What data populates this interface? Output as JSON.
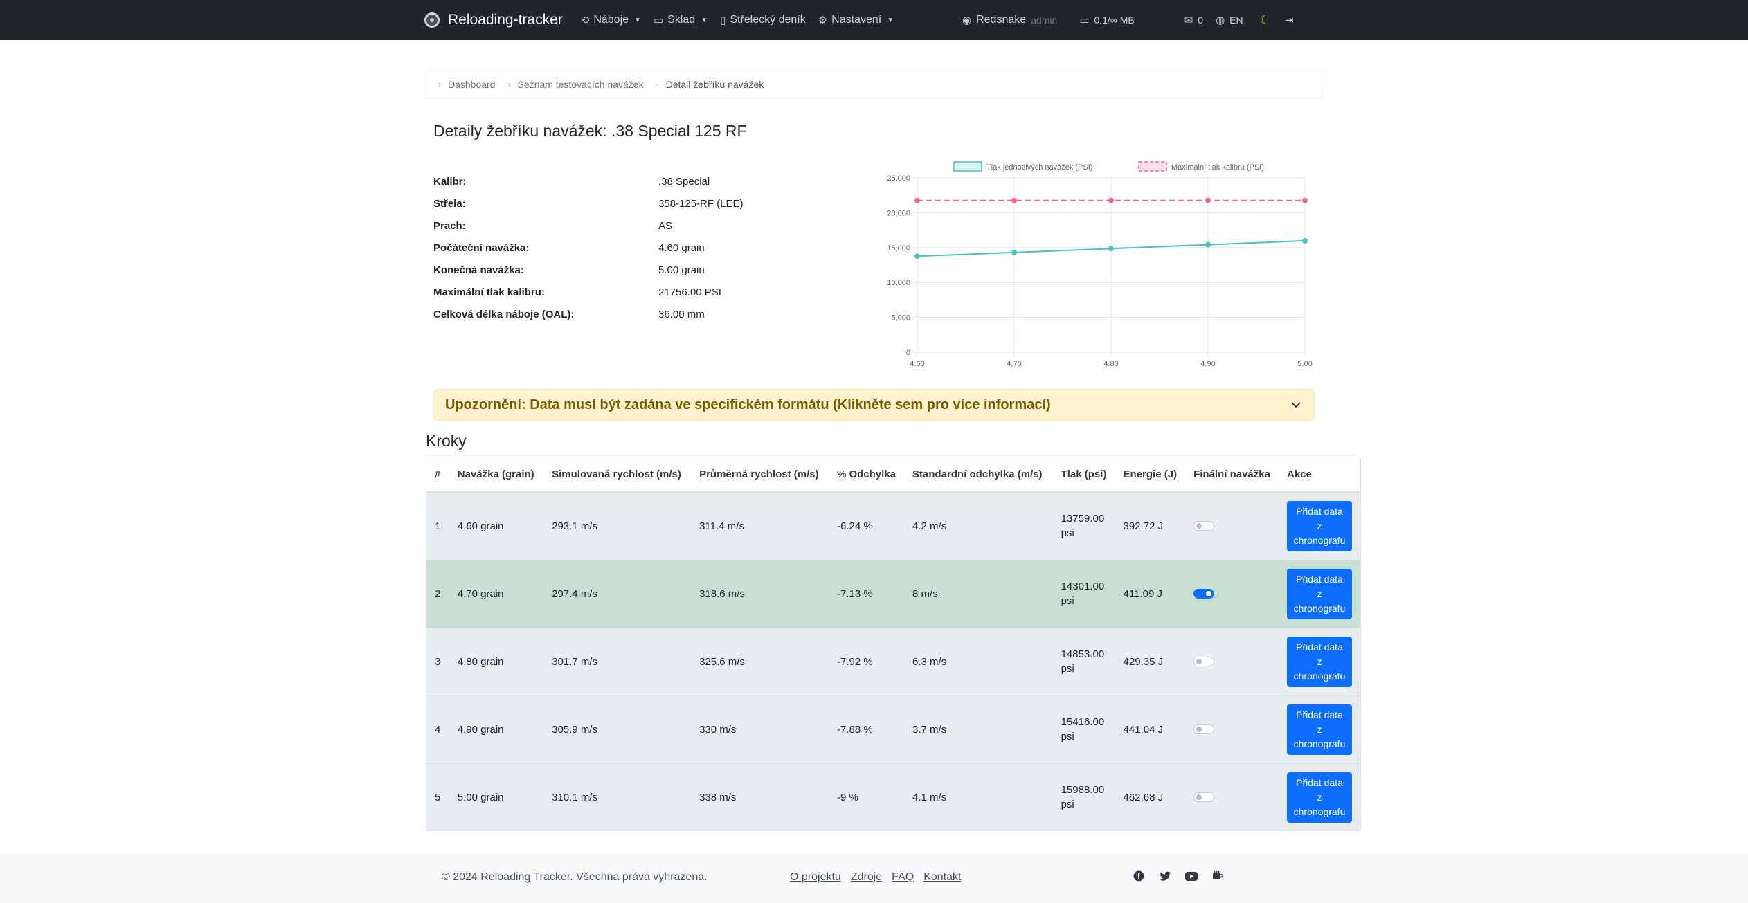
{
  "navbar": {
    "brand": "Reloading-tracker",
    "items": [
      {
        "label": "Náboje",
        "has_caret": true
      },
      {
        "label": "Sklad",
        "has_caret": true
      },
      {
        "label": "Střelecký deník",
        "has_caret": false
      },
      {
        "label": "Nastavení",
        "has_caret": true
      }
    ],
    "user": "Redsnake",
    "role": "admin",
    "storage": "0.1/∞ MB",
    "messages_count": "0",
    "language": "EN"
  },
  "breadcrumb": {
    "items": [
      "Dashboard",
      "Seznam testovacích navážek",
      "Detail žebříku navážek"
    ]
  },
  "page_title": "Detaily žebříku navážek: .38 Special 125 RF",
  "details": [
    {
      "label": "Kalibr:",
      "value": ".38 Special"
    },
    {
      "label": "Střela:",
      "value": "358-125-RF (LEE)"
    },
    {
      "label": "Prach:",
      "value": "AS"
    },
    {
      "label": "Počáteční navážka:",
      "value": "4.60 grain"
    },
    {
      "label": "Konečná navážka:",
      "value": "5.00 grain"
    },
    {
      "label": "Maximální tlak kalibru:",
      "value": "21756.00 PSI"
    },
    {
      "label": "Celková délka náboje (OAL):",
      "value": "36.00 mm"
    }
  ],
  "chart_data": {
    "type": "line",
    "x": [
      4.6,
      4.7,
      4.8,
      4.9,
      5.0
    ],
    "x_tick_labels": [
      "4.60",
      "4.70",
      "4.80",
      "4.90",
      "5.00"
    ],
    "y_tick_labels": [
      "0",
      "5,000",
      "10,000",
      "15,000",
      "20,000",
      "25,000"
    ],
    "ylim": [
      0,
      25000
    ],
    "grid": true,
    "legend_position": "top",
    "series": [
      {
        "name": "Tlak jednotlivých navážek (PSI)",
        "values": [
          13759,
          14301,
          14853,
          15416,
          15988
        ],
        "color": "#4bc0c0",
        "dashed": false
      },
      {
        "name": "Maximální tlak kalibru (PSI)",
        "values": [
          21756,
          21756,
          21756,
          21756,
          21756
        ],
        "color": "#ff6384",
        "dashed": true
      }
    ]
  },
  "alert": {
    "text": "Upozornění: Data musí být zadána ve specifickém formátu (Klikněte sem pro více informací)"
  },
  "steps": {
    "title": "Kroky",
    "columns": [
      "#",
      "Navážka (grain)",
      "Simulovaná rychlost (m/s)",
      "Průměrná rychlost (m/s)",
      "% Odchylka",
      "Standardní odchylka (m/s)",
      "Tlak (psi)",
      "Energie (J)",
      "Finální navážka",
      "Akce"
    ],
    "rows": [
      {
        "n": "1",
        "charge": "4.60 grain",
        "sim_v": "293.1 m/s",
        "avg_v": "311.4 m/s",
        "dev": "-6.24 %",
        "sd": "4.2 m/s",
        "pressure_val": "13759.00",
        "pressure_unit": "psi",
        "energy": "392.72 J",
        "final": false
      },
      {
        "n": "2",
        "charge": "4.70 grain",
        "sim_v": "297.4 m/s",
        "avg_v": "318.6 m/s",
        "dev": "-7.13 %",
        "sd": "8 m/s",
        "pressure_val": "14301.00",
        "pressure_unit": "psi",
        "energy": "411.09 J",
        "final": true
      },
      {
        "n": "3",
        "charge": "4.80 grain",
        "sim_v": "301.7 m/s",
        "avg_v": "325.6 m/s",
        "dev": "-7.92 %",
        "sd": "6.3 m/s",
        "pressure_val": "14853.00",
        "pressure_unit": "psi",
        "energy": "429.35 J",
        "final": false
      },
      {
        "n": "4",
        "charge": "4.90 grain",
        "sim_v": "305.9 m/s",
        "avg_v": "330 m/s",
        "dev": "-7.88 %",
        "sd": "3.7 m/s",
        "pressure_val": "15416.00",
        "pressure_unit": "psi",
        "energy": "441.04 J",
        "final": false
      },
      {
        "n": "5",
        "charge": "5.00 grain",
        "sim_v": "310.1 m/s",
        "avg_v": "338 m/s",
        "dev": "-9 %",
        "sd": "4.1 m/s",
        "pressure_val": "15988.00",
        "pressure_unit": "psi",
        "energy": "462.68 J",
        "final": false
      }
    ],
    "action_label_lines": [
      "Přidat data",
      "z",
      "chronografu"
    ]
  },
  "footer": {
    "copyright": "© 2024 Reloading Tracker. Všechna práva vyhrazena.",
    "links": [
      "O projektu",
      "Zdroje",
      "FAQ",
      "Kontakt"
    ],
    "icons": [
      "facebook-icon",
      "twitter-icon",
      "youtube-icon",
      "coffee-icon"
    ]
  }
}
